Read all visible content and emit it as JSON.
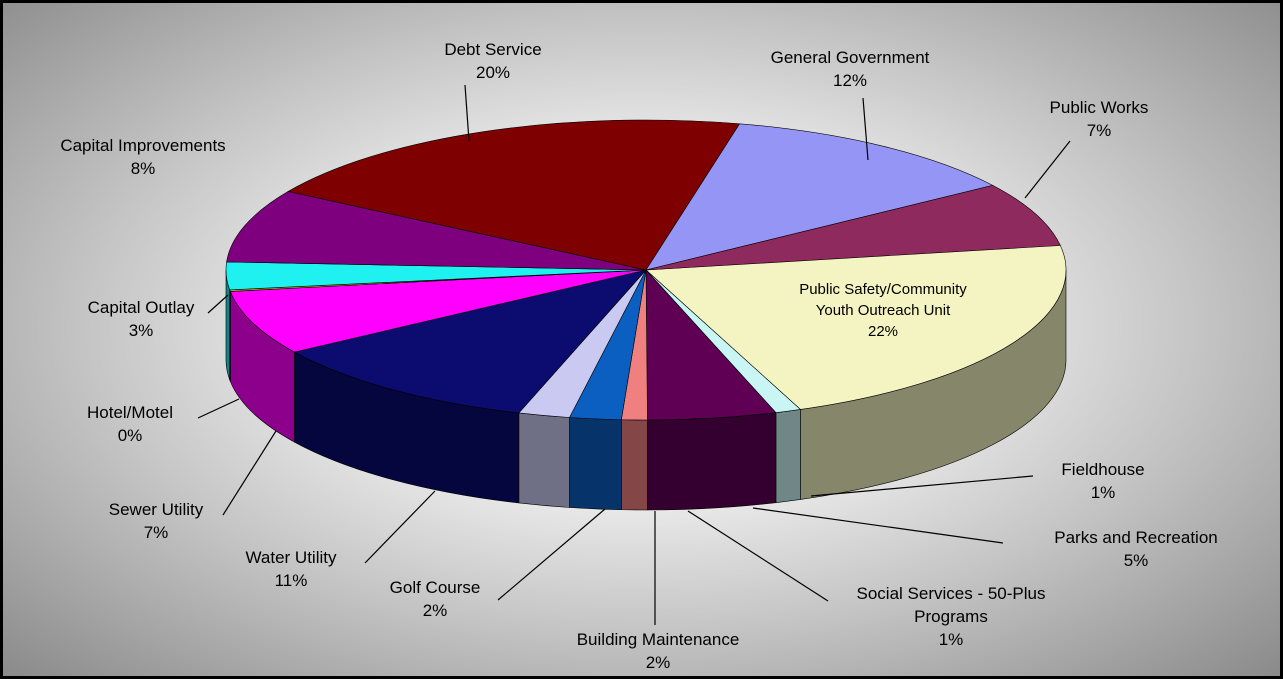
{
  "chart_data": {
    "type": "pie",
    "style": "3d-exploded-none",
    "title": "",
    "categories": [
      "Public Safety/Community Youth Outreach Unit",
      "Fieldhouse",
      "Parks and Recreation",
      "Social Services - 50-Plus Programs",
      "Building Maintenance",
      "Golf Course",
      "Water Utility",
      "Sewer Utility",
      "Hotel/Motel",
      "Capital Outlay",
      "Capital Improvements",
      "Debt Service",
      "General Government",
      "Public Works"
    ],
    "values": [
      22,
      1,
      5,
      1,
      2,
      2,
      11,
      7,
      0,
      3,
      8,
      20,
      12,
      7
    ],
    "labels": [
      {
        "name_lines": [
          "Public Safety/Community",
          "Youth Outreach Unit"
        ],
        "pct": "22%"
      },
      {
        "name_lines": [
          "Fieldhouse"
        ],
        "pct": "1%"
      },
      {
        "name_lines": [
          "Parks and Recreation"
        ],
        "pct": "5%"
      },
      {
        "name_lines": [
          "Social Services - 50-Plus",
          "Programs"
        ],
        "pct": "1%"
      },
      {
        "name_lines": [
          "Building Maintenance"
        ],
        "pct": "2%"
      },
      {
        "name_lines": [
          "Golf Course"
        ],
        "pct": "2%"
      },
      {
        "name_lines": [
          "Water Utility"
        ],
        "pct": "11%"
      },
      {
        "name_lines": [
          "Sewer Utility"
        ],
        "pct": "7%"
      },
      {
        "name_lines": [
          "Hotel/Motel"
        ],
        "pct": "0%"
      },
      {
        "name_lines": [
          "Capital Outlay"
        ],
        "pct": "3%"
      },
      {
        "name_lines": [
          "Capital Improvements"
        ],
        "pct": "8%"
      },
      {
        "name_lines": [
          "Debt Service"
        ],
        "pct": "20%"
      },
      {
        "name_lines": [
          "General Government"
        ],
        "pct": "12%"
      },
      {
        "name_lines": [
          "Public Works"
        ],
        "pct": "7%"
      }
    ],
    "colors": [
      "#f4f3c2",
      "#c9f5f5",
      "#5f0055",
      "#f07f7f",
      "#0a5fc0",
      "#c9c9f2",
      "#0b0b70",
      "#ff00ff",
      "#b5b500",
      "#1ff0f0",
      "#7e007e",
      "#7f0000",
      "#9595f5",
      "#8e2a5e"
    ],
    "legend": "none"
  }
}
